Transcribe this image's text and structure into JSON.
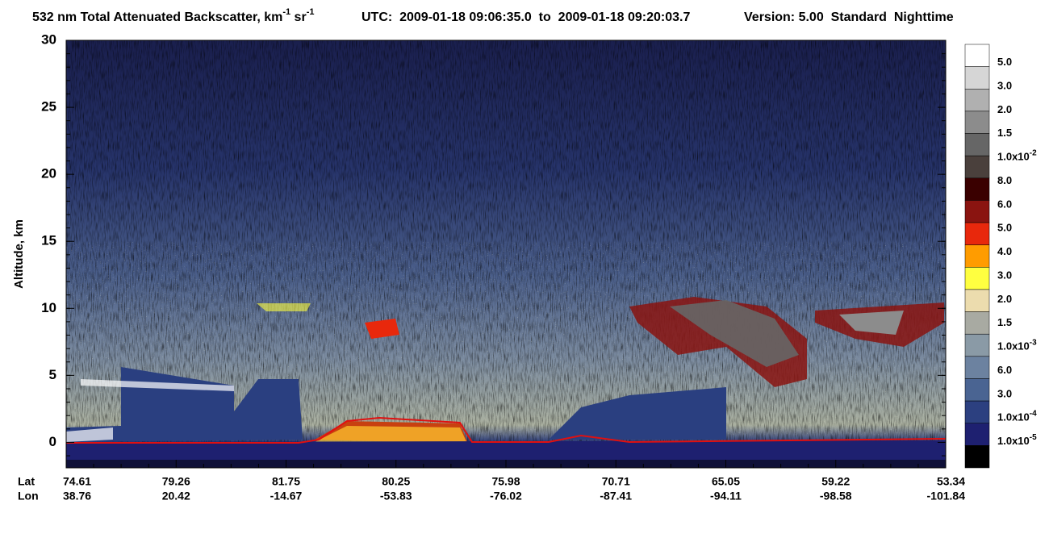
{
  "chart_data": {
    "type": "curtain",
    "title": [
      "532 nm Total Attenuated Backscatter, km",
      "-1",
      " sr",
      "-1"
    ],
    "utc": "UTC:  2009-01-18 09:06:35.0  to  2009-01-18 09:20:03.7",
    "version": "Version: 5.00  Standard  Nighttime",
    "ylabel": "Altitude, km",
    "ylim": [
      -1.9,
      30
    ],
    "yticks": [
      0,
      5,
      10,
      15,
      20,
      25,
      30
    ],
    "lat_label": "Lat",
    "lon_label": "Lon",
    "lat": [
      "74.61",
      "79.26",
      "81.75",
      "80.25",
      "75.98",
      "70.71",
      "65.05",
      "59.22",
      "53.34"
    ],
    "lon": [
      "38.76",
      "20.42",
      "-14.67",
      "-53.83",
      "-76.02",
      "-87.41",
      "-94.11",
      "-98.58",
      "-101.84"
    ],
    "colorbar": {
      "colors": [
        "#ffffff",
        "#d6d6d6",
        "#b0b0b0",
        "#8c8c8c",
        "#666666",
        "#4a403c",
        "#3a0000",
        "#8a1410",
        "#e8280c",
        "#ff9c00",
        "#ffff40",
        "#ecdcae",
        "#a8aaa2",
        "#8a9aa6",
        "#6c82a0",
        "#4a6492",
        "#2c4080",
        "#1e2070",
        "#000000"
      ],
      "labels": [
        {
          "text": "5.0"
        },
        {
          "text": "3.0"
        },
        {
          "text": "2.0"
        },
        {
          "text": "1.5"
        },
        {
          "text": "1.0x10",
          "sup": "-2"
        },
        {
          "text": "8.0"
        },
        {
          "text": "6.0"
        },
        {
          "text": "5.0"
        },
        {
          "text": "4.0"
        },
        {
          "text": "3.0"
        },
        {
          "text": "2.0"
        },
        {
          "text": "1.5"
        },
        {
          "text": "1.0x10",
          "sup": "-3"
        },
        {
          "text": "6.0"
        },
        {
          "text": "3.0"
        },
        {
          "text": "1.0x10",
          "sup": "-4"
        },
        {
          "text": "1.0x10",
          "sup": "-5"
        }
      ]
    }
  }
}
